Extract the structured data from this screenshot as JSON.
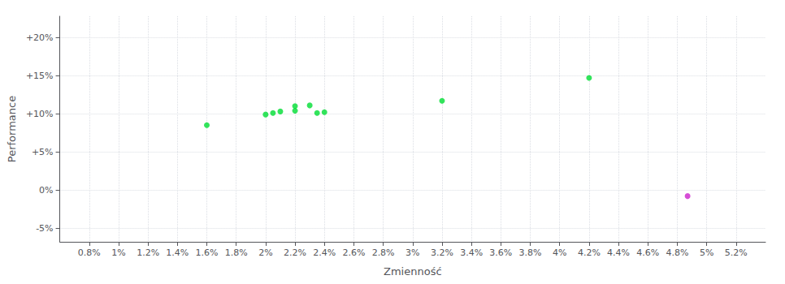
{
  "chart_data": {
    "type": "scatter",
    "xlabel": "Zmienność",
    "ylabel": "Performance",
    "xlim": [
      0.006,
      0.054
    ],
    "ylim": [
      -0.068,
      0.228
    ],
    "xticks": [
      {
        "value": 0.008,
        "label": "0.8%"
      },
      {
        "value": 0.01,
        "label": "1%"
      },
      {
        "value": 0.012,
        "label": "1.2%"
      },
      {
        "value": 0.014,
        "label": "1.4%"
      },
      {
        "value": 0.016,
        "label": "1.6%"
      },
      {
        "value": 0.018,
        "label": "1.8%"
      },
      {
        "value": 0.02,
        "label": "2%"
      },
      {
        "value": 0.022,
        "label": "2.2%"
      },
      {
        "value": 0.024,
        "label": "2.4%"
      },
      {
        "value": 0.026,
        "label": "2.6%"
      },
      {
        "value": 0.028,
        "label": "2.8%"
      },
      {
        "value": 0.03,
        "label": "3%"
      },
      {
        "value": 0.032,
        "label": "3.2%"
      },
      {
        "value": 0.034,
        "label": "3.4%"
      },
      {
        "value": 0.036,
        "label": "3.6%"
      },
      {
        "value": 0.038,
        "label": "3.8%"
      },
      {
        "value": 0.04,
        "label": "4%"
      },
      {
        "value": 0.042,
        "label": "4.2%"
      },
      {
        "value": 0.044,
        "label": "4.4%"
      },
      {
        "value": 0.046,
        "label": "4.6%"
      },
      {
        "value": 0.048,
        "label": "4.8%"
      },
      {
        "value": 0.05,
        "label": "5%"
      },
      {
        "value": 0.052,
        "label": "5.2%"
      }
    ],
    "yticks": [
      {
        "value": -0.05,
        "label": "-5%"
      },
      {
        "value": 0.0,
        "label": "0%"
      },
      {
        "value": 0.05,
        "label": "+5%"
      },
      {
        "value": 0.1,
        "label": "+10%"
      },
      {
        "value": 0.15,
        "label": "+15%"
      },
      {
        "value": 0.2,
        "label": "+20%"
      }
    ],
    "grid": true,
    "series": [
      {
        "color": "#00dd33",
        "x": [
          0.016,
          0.02,
          0.0205,
          0.021,
          0.022,
          0.022,
          0.023,
          0.0235,
          0.024,
          0.032,
          0.042
        ],
        "values": [
          0.085,
          0.099,
          0.101,
          0.103,
          0.104,
          0.11,
          0.111,
          0.101,
          0.102,
          0.117,
          0.147
        ]
      },
      {
        "color": "#cc22cc",
        "x": [
          0.0487
        ],
        "values": [
          -0.008
        ]
      }
    ]
  }
}
